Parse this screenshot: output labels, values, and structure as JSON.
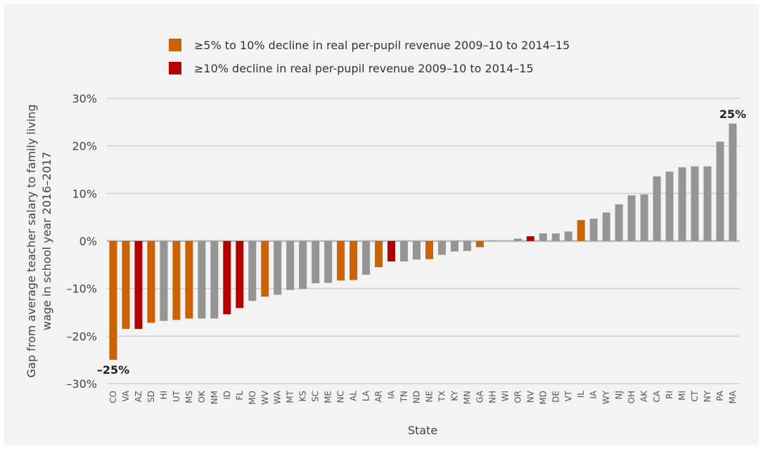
{
  "chart_data": {
    "type": "bar",
    "xlabel": "State",
    "ylabel_lines": [
      "Gap from average teacher salary to family living",
      "wage in school year 2016–2017"
    ],
    "ylim": [
      -30,
      30
    ],
    "yticks": [
      30,
      20,
      10,
      0,
      -10,
      -20,
      -30
    ],
    "ytick_labels": [
      "30%",
      "20%",
      "10%",
      "0%",
      "–10%",
      "–20%",
      "–30%"
    ],
    "grid": true,
    "legend_placement": "top-center",
    "legend": [
      {
        "key": "moderate",
        "label": "≥5% to 10% decline in real per-pupil revenue 2009–10 to 2014–15",
        "color": "#cc6200"
      },
      {
        "key": "severe",
        "label": "≥10% decline in real per-pupil revenue 2009–10 to 2014–15",
        "color": "#b30000"
      }
    ],
    "default_color": "#959595",
    "categories": [
      "CO",
      "VA",
      "AZ",
      "SD",
      "HI",
      "UT",
      "MS",
      "OK",
      "NM",
      "ID",
      "FL",
      "MO",
      "WV",
      "WA",
      "MT",
      "KS",
      "SC",
      "ME",
      "NC",
      "AL",
      "LA",
      "AR",
      "IA",
      "TN",
      "ND",
      "NE",
      "TX",
      "KY",
      "MN",
      "GA",
      "NH",
      "WI",
      "OR",
      "NV",
      "MD",
      "DE",
      "VT",
      "IL",
      "IA",
      "WY",
      "NJ",
      "OH",
      "AK",
      "CA",
      "RI",
      "MI",
      "CT",
      "NY",
      "PA",
      "MA"
    ],
    "values": [
      -25,
      -18.5,
      -18.5,
      -17.2,
      -16.8,
      -16.6,
      -16.3,
      -16.3,
      -16.3,
      -15.4,
      -14.1,
      -12.6,
      -11.7,
      -11.3,
      -10.3,
      -10.1,
      -8.9,
      -8.8,
      -8.3,
      -8.2,
      -7.1,
      -5.5,
      -4.3,
      -4.3,
      -3.9,
      -3.8,
      -2.9,
      -2.2,
      -2.1,
      -1.3,
      0.1,
      0.05,
      0.5,
      1.0,
      1.6,
      1.6,
      2.0,
      4.4,
      4.7,
      6.0,
      7.7,
      9.6,
      9.8,
      13.6,
      14.6,
      15.5,
      15.7,
      15.7,
      20.9,
      24.7
    ],
    "groups": [
      "moderate",
      "moderate",
      "severe",
      "moderate",
      "none",
      "moderate",
      "moderate",
      "none",
      "none",
      "severe",
      "severe",
      "none",
      "moderate",
      "none",
      "none",
      "none",
      "none",
      "none",
      "moderate",
      "moderate",
      "none",
      "moderate",
      "severe",
      "none",
      "none",
      "moderate",
      "none",
      "none",
      "none",
      "moderate",
      "none",
      "none",
      "none",
      "severe",
      "none",
      "none",
      "none",
      "moderate",
      "none",
      "none",
      "none",
      "none",
      "none",
      "none",
      "none",
      "none",
      "none",
      "none",
      "none",
      "none"
    ],
    "annotations": [
      {
        "category_index": 0,
        "text": "–25%"
      },
      {
        "category_index": 49,
        "text": "25%"
      }
    ]
  }
}
